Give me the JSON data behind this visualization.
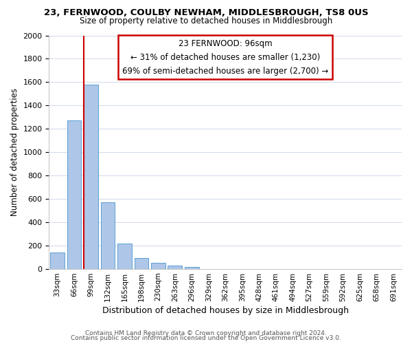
{
  "title1": "23, FERNWOOD, COULBY NEWHAM, MIDDLESBROUGH, TS8 0US",
  "title2": "Size of property relative to detached houses in Middlesbrough",
  "xlabel": "Distribution of detached houses by size in Middlesbrough",
  "ylabel": "Number of detached properties",
  "categories": [
    "33sqm",
    "66sqm",
    "99sqm",
    "132sqm",
    "165sqm",
    "198sqm",
    "230sqm",
    "263sqm",
    "296sqm",
    "329sqm",
    "362sqm",
    "395sqm",
    "428sqm",
    "461sqm",
    "494sqm",
    "527sqm",
    "559sqm",
    "592sqm",
    "625sqm",
    "658sqm",
    "691sqm"
  ],
  "values": [
    140,
    1270,
    1580,
    570,
    215,
    90,
    50,
    25,
    15,
    0,
    0,
    0,
    0,
    0,
    0,
    0,
    0,
    0,
    0,
    0,
    0
  ],
  "bar_color": "#aec6e8",
  "bar_edge_color": "#5a9fd4",
  "vline_color": "#cc0000",
  "vline_position": 1.575,
  "ylim": [
    0,
    2000
  ],
  "yticks": [
    0,
    200,
    400,
    600,
    800,
    1000,
    1200,
    1400,
    1600,
    1800,
    2000
  ],
  "annotation_line1": "23 FERNWOOD: 96sqm",
  "annotation_line2": "← 31% of detached houses are smaller (1,230)",
  "annotation_line3": "69% of semi-detached houses are larger (2,700) →",
  "annotation_box_color": "#ffffff",
  "annotation_box_edge": "#cc0000",
  "footer1": "Contains HM Land Registry data © Crown copyright and database right 2024.",
  "footer2": "Contains public sector information licensed under the Open Government Licence v3.0.",
  "background_color": "#ffffff",
  "grid_color": "#d0d8e8"
}
